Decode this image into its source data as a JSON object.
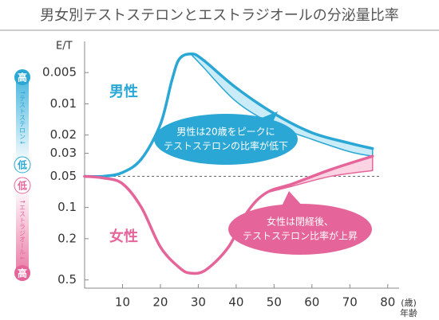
{
  "chart_data": {
    "type": "line",
    "title": "男女別テストステロンとエストラジオールの分泌量比率",
    "y_label": "E/T",
    "x_unit": "(歳)",
    "x_label": "年齢",
    "log_y": true,
    "y_inverted": true,
    "xlim": [
      0,
      83
    ],
    "xticks": [
      10,
      20,
      30,
      40,
      50,
      60,
      70,
      80
    ],
    "ylim": [
      0.0025,
      0.6
    ],
    "yticks": [
      0.005,
      0.01,
      0.02,
      0.03,
      0.05,
      0.1,
      0.2,
      0.5
    ],
    "reference": 0.05,
    "series": [
      {
        "name": "男性",
        "color": "#2aa7d4",
        "band_color": "#c9ecf8",
        "x": [
          0,
          5,
          10,
          15,
          20,
          23,
          25,
          28,
          31,
          40,
          50,
          60,
          70,
          76
        ],
        "values": [
          0.05,
          0.05,
          0.046,
          0.034,
          0.0158,
          0.006,
          0.0037,
          0.0033,
          0.0037,
          0.007,
          0.0124,
          0.019,
          0.024,
          0.027
        ],
        "band": [
          null,
          null,
          null,
          null,
          null,
          null,
          null,
          0.0033,
          0.0043,
          0.0095,
          0.016,
          0.022,
          0.029,
          0.032
        ]
      },
      {
        "name": "女性",
        "color": "#e5659a",
        "band_color": "#fbd3e3",
        "x": [
          0,
          5,
          10,
          15,
          20,
          25,
          28,
          32,
          38,
          43,
          48,
          55,
          65,
          76
        ],
        "values": [
          0.05,
          0.052,
          0.059,
          0.1,
          0.24,
          0.38,
          0.43,
          0.4,
          0.24,
          0.11,
          0.072,
          0.059,
          0.043,
          0.032
        ],
        "band": [
          null,
          null,
          null,
          null,
          null,
          null,
          null,
          null,
          null,
          null,
          0.072,
          0.062,
          0.05,
          0.044
        ]
      }
    ],
    "callouts": [
      {
        "lines": [
          "男性は20歳をピークに",
          "テストステロンの比率が低下"
        ],
        "color": "#2aa7d4"
      },
      {
        "lines": [
          "女性は閉経後、",
          "テストステロン比率が上昇"
        ],
        "color": "#e5659a"
      }
    ]
  },
  "sidebar": {
    "top": "高",
    "upper_arrow": "↑テストステロン↓",
    "upper_end": "低",
    "lower_start": "低",
    "lower_arrow": "↑エストラジオール↓",
    "bottom": "高"
  }
}
